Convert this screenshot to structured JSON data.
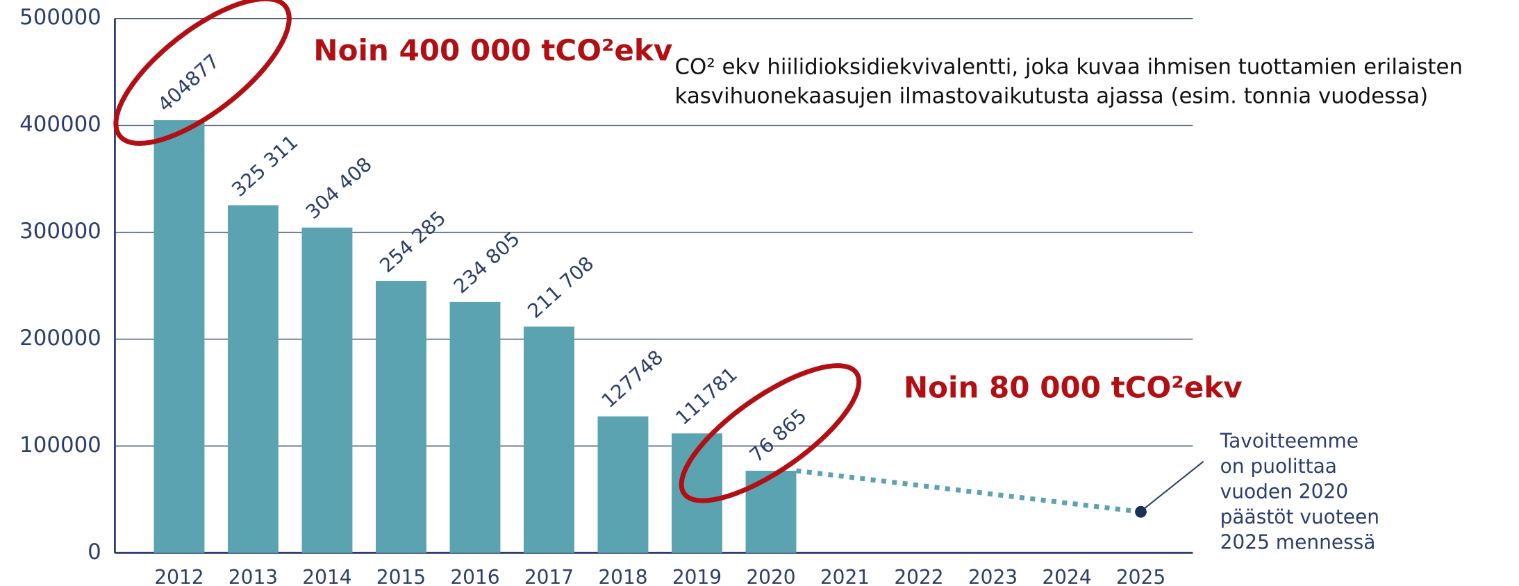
{
  "chart_data": {
    "type": "bar",
    "categories": [
      "2012",
      "2013",
      "2014",
      "2015",
      "2016",
      "2017",
      "2018",
      "2019",
      "2020",
      "2021",
      "2022",
      "2023",
      "2024",
      "2025"
    ],
    "series": [
      {
        "color": "#5ba3b0",
        "values": [
          404877,
          325311,
          304408,
          254285,
          234805,
          211708,
          127748,
          111781,
          76865,
          null,
          null,
          null,
          null,
          null
        ],
        "value_labels": [
          "404877",
          "325 311",
          "304 408",
          "254 285",
          "234 805",
          "211 708",
          "127748",
          "111781",
          "76 865",
          null,
          null,
          null,
          null,
          null
        ]
      },
      {
        "color": "#5ba3b0",
        "point_color": "#1f2f5c",
        "values": [
          null,
          null,
          null,
          null,
          null,
          null,
          null,
          null,
          76865,
          null,
          null,
          null,
          null,
          38400
        ]
      }
    ],
    "ylim": [
      0,
      500000
    ],
    "yticks": [
      0,
      100000,
      200000,
      300000,
      400000,
      500000
    ],
    "grid": true,
    "annotations": [
      "Noin 400 000 tCO²ekv",
      "Noin 80 000 tCO²ekv"
    ],
    "note_lines": [
      "CO² ekv hiilidioksidiekvivalentti, joka kuvaa ihmisen tuottamien erilaisten",
      "kasvihuonekaasujen ilmastovaikutusta ajassa (esim. tonnia vuodessa)"
    ],
    "target_note": [
      "Tavoitteemme",
      "on puolittaa",
      "vuoden 2020",
      "päästöt vuoteen",
      "2025 mennessä"
    ]
  }
}
